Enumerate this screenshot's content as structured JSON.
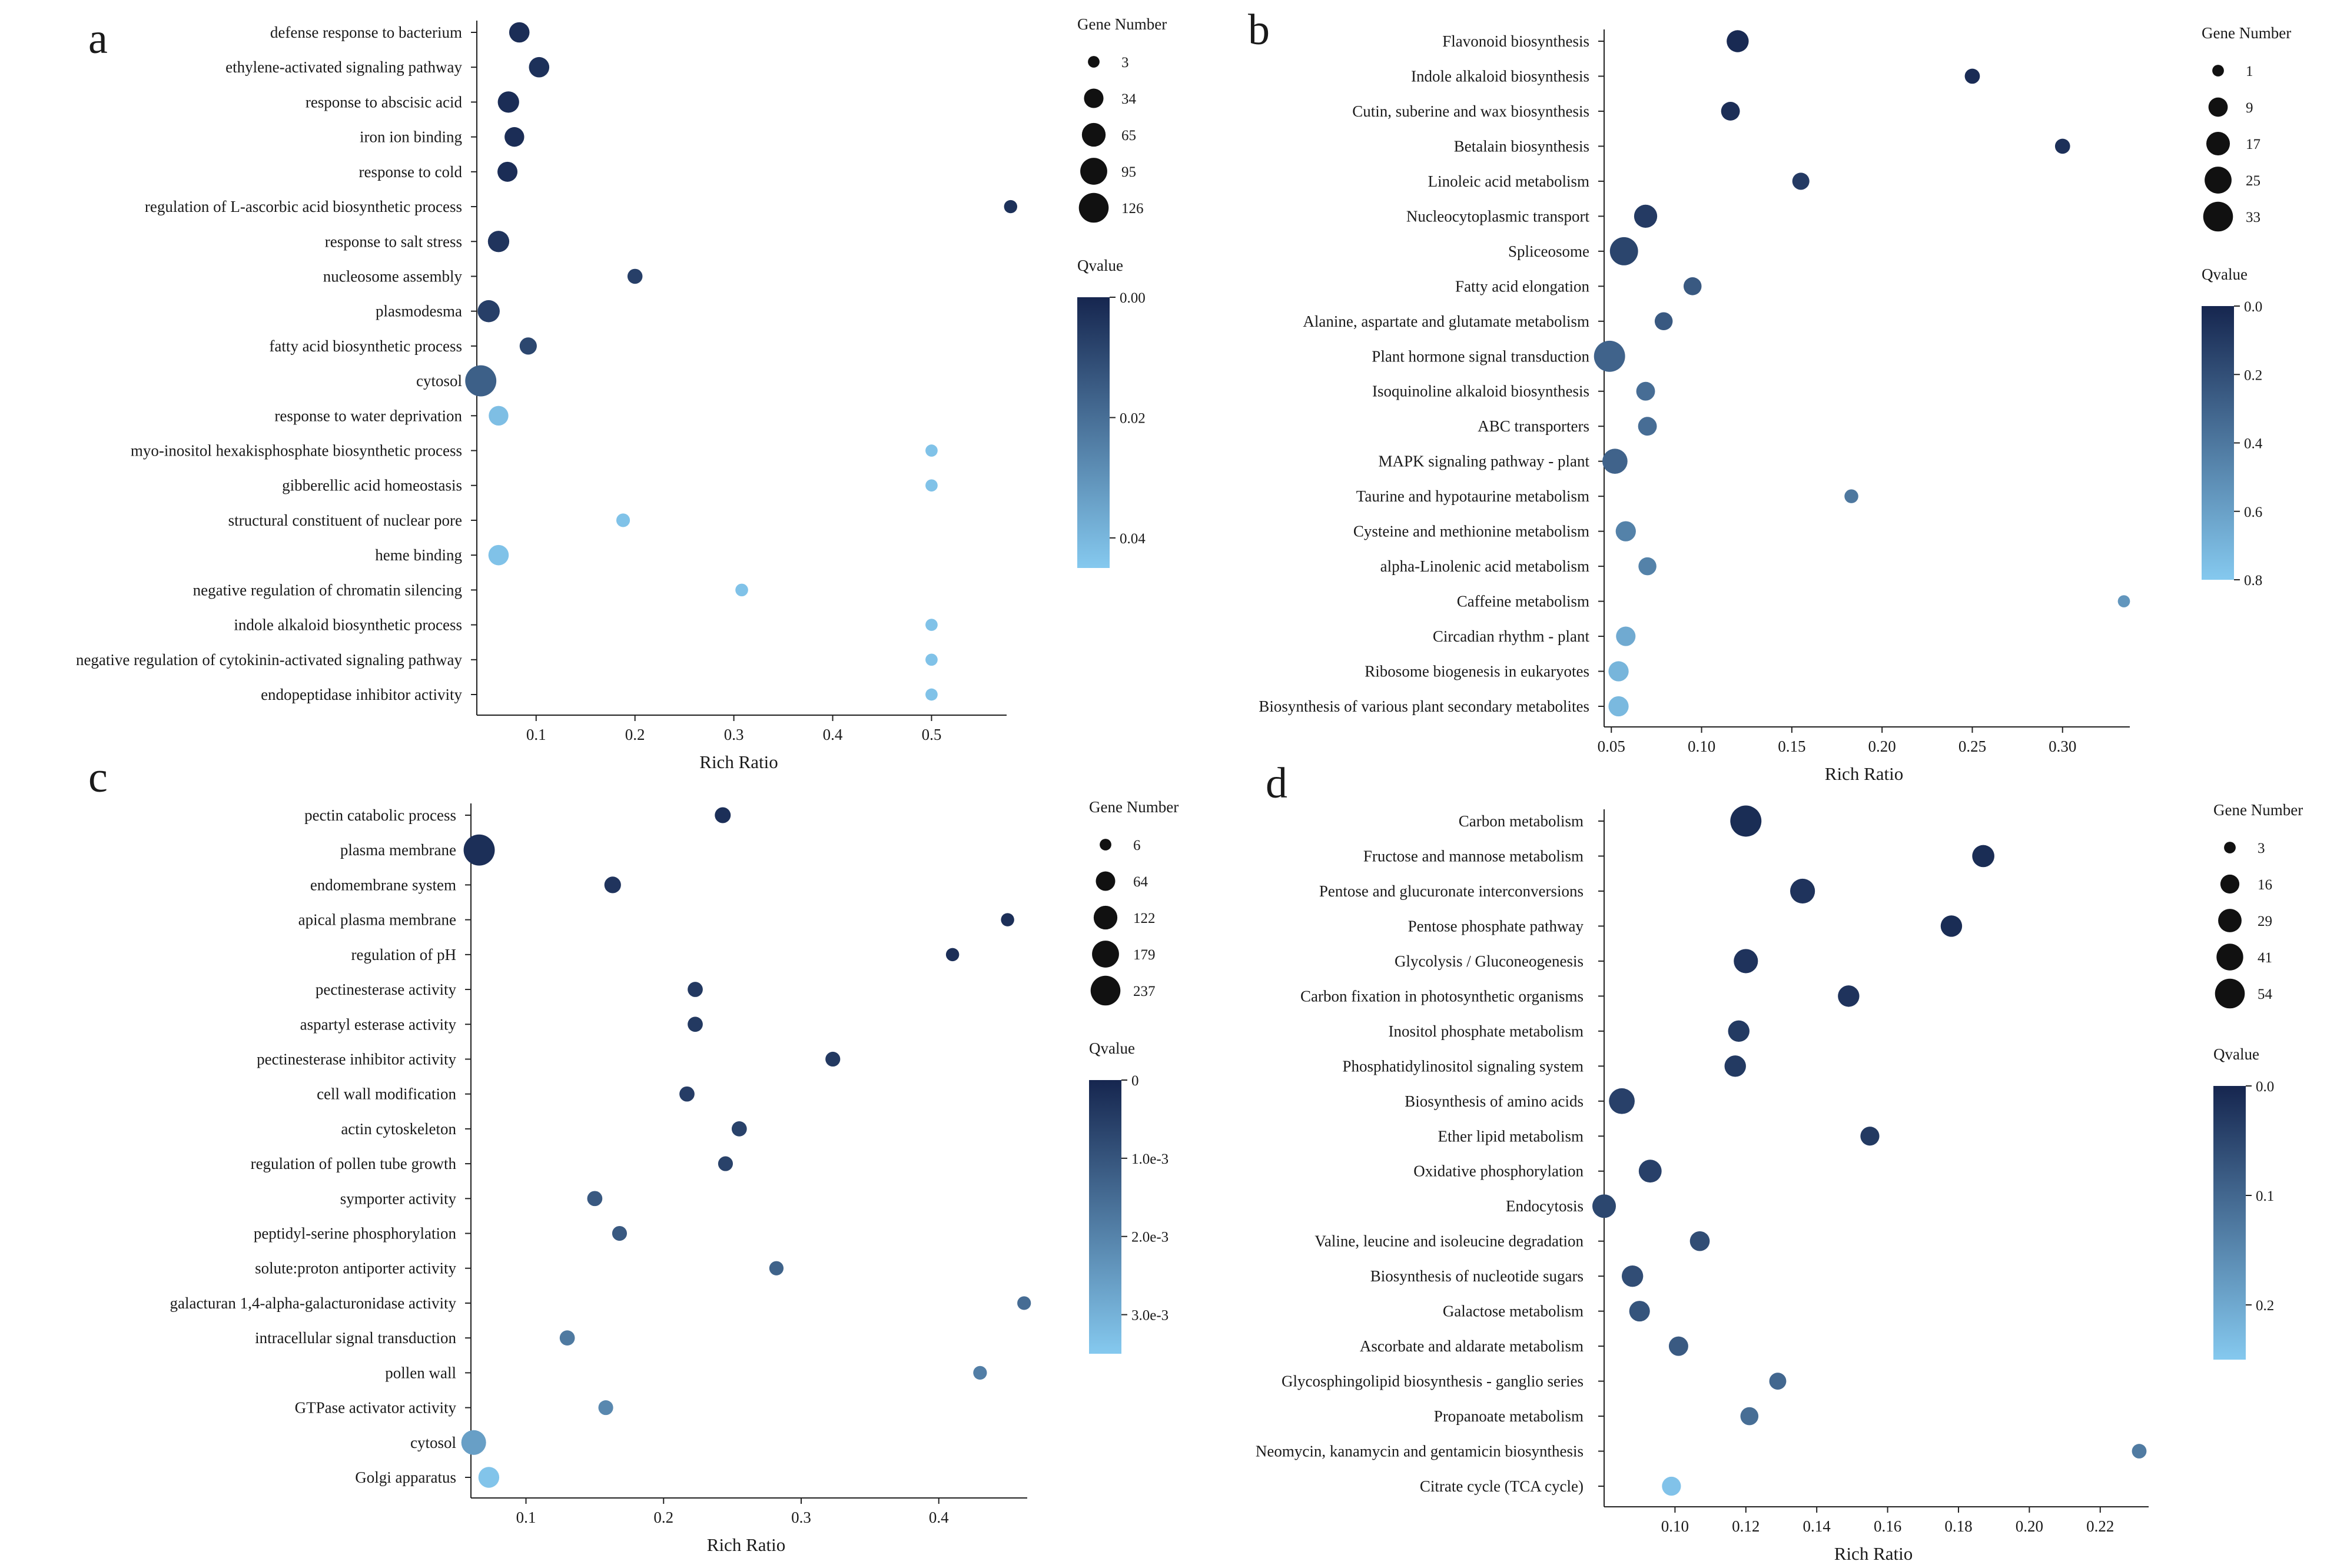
{
  "chart_data": [
    {
      "panel": "a",
      "type": "scatter",
      "xlabel": "Rich Ratio",
      "xticks": [
        "0.1",
        "0.2",
        "0.3",
        "0.4",
        "0.5"
      ],
      "size_legend_title": "Gene Number",
      "size_legend": [
        3,
        34,
        65,
        95,
        126
      ],
      "color_legend_title": "Qvalue",
      "color_ticks": [
        "0.00",
        "0.02",
        "0.04"
      ],
      "colors": {
        "low": "#16264f",
        "high": "#85c9ef"
      },
      "points": [
        {
          "term": "defense response to bacterium",
          "x": 0.083,
          "genes": 34,
          "q": 0.002
        },
        {
          "term": "ethylene-activated signaling pathway",
          "x": 0.103,
          "genes": 34,
          "q": 0.003
        },
        {
          "term": "response to abscisic acid",
          "x": 0.072,
          "genes": 40,
          "q": 0.002
        },
        {
          "term": "iron ion binding",
          "x": 0.078,
          "genes": 30,
          "q": 0.002
        },
        {
          "term": "response to cold",
          "x": 0.071,
          "genes": 32,
          "q": 0.002
        },
        {
          "term": "regulation of L-ascorbic acid biosynthetic process",
          "x": 0.58,
          "genes": 5,
          "q": 0.003
        },
        {
          "term": "response to salt stress",
          "x": 0.062,
          "genes": 40,
          "q": 0.004
        },
        {
          "term": "nucleosome assembly",
          "x": 0.2,
          "genes": 10,
          "q": 0.007
        },
        {
          "term": "plasmodesma",
          "x": 0.052,
          "genes": 45,
          "q": 0.007
        },
        {
          "term": "fatty acid biosynthetic process",
          "x": 0.092,
          "genes": 18,
          "q": 0.009
        },
        {
          "term": "cytosol",
          "x": 0.044,
          "genes": 126,
          "q": 0.016
        },
        {
          "term": "response to water deprivation",
          "x": 0.062,
          "genes": 30,
          "q": 0.042
        },
        {
          "term": "myo-inositol hexakisphosphate biosynthetic process",
          "x": 0.5,
          "genes": 3,
          "q": 0.043
        },
        {
          "term": "gibberellic acid homeostasis",
          "x": 0.5,
          "genes": 3,
          "q": 0.043
        },
        {
          "term": "structural constituent of nuclear pore",
          "x": 0.188,
          "genes": 6,
          "q": 0.043
        },
        {
          "term": "heme binding",
          "x": 0.062,
          "genes": 34,
          "q": 0.043
        },
        {
          "term": "negative regulation of chromatin silencing",
          "x": 0.308,
          "genes": 4,
          "q": 0.043
        },
        {
          "term": "indole alkaloid biosynthetic process",
          "x": 0.5,
          "genes": 3,
          "q": 0.043
        },
        {
          "term": "negative regulation of cytokinin-activated signaling pathway",
          "x": 0.5,
          "genes": 3,
          "q": 0.043
        },
        {
          "term": "endopeptidase inhibitor activity",
          "x": 0.5,
          "genes": 3,
          "q": 0.043
        }
      ]
    },
    {
      "panel": "b",
      "type": "scatter",
      "xlabel": "Rich Ratio",
      "xticks": [
        "0.05",
        "0.10",
        "0.15",
        "0.20",
        "0.25",
        "0.30"
      ],
      "size_legend_title": "Gene Number",
      "size_legend": [
        1,
        9,
        17,
        25,
        33
      ],
      "color_legend_title": "Qvalue",
      "color_ticks": [
        "0.0",
        "0.2",
        "0.4",
        "0.6",
        "0.8"
      ],
      "colors": {
        "low": "#16264f",
        "high": "#85c9ef"
      },
      "points": [
        {
          "term": "Flavonoid biosynthesis",
          "x": 0.12,
          "genes": 12,
          "q": 0.02
        },
        {
          "term": "Indole alkaloid biosynthesis",
          "x": 0.25,
          "genes": 3,
          "q": 0.03
        },
        {
          "term": "Cutin, suberine and wax biosynthesis",
          "x": 0.116,
          "genes": 7,
          "q": 0.04
        },
        {
          "term": "Betalain biosynthesis",
          "x": 0.3,
          "genes": 3,
          "q": 0.05
        },
        {
          "term": "Linoleic acid metabolism",
          "x": 0.155,
          "genes": 5,
          "q": 0.1
        },
        {
          "term": "Nucleocytoplasmic transport",
          "x": 0.069,
          "genes": 14,
          "q": 0.1
        },
        {
          "term": "Spliceosome",
          "x": 0.057,
          "genes": 25,
          "q": 0.15
        },
        {
          "term": "Fatty acid elongation",
          "x": 0.095,
          "genes": 6,
          "q": 0.25
        },
        {
          "term": "Alanine, aspartate and glutamate metabolism",
          "x": 0.079,
          "genes": 6,
          "q": 0.25
        },
        {
          "term": "Plant hormone signal transduction",
          "x": 0.049,
          "genes": 33,
          "q": 0.3
        },
        {
          "term": "Isoquinoline alkaloid biosynthesis",
          "x": 0.069,
          "genes": 7,
          "q": 0.35
        },
        {
          "term": "ABC transporters",
          "x": 0.07,
          "genes": 7,
          "q": 0.35
        },
        {
          "term": "MAPK signaling pathway - plant",
          "x": 0.052,
          "genes": 18,
          "q": 0.3
        },
        {
          "term": "Taurine and hypotaurine metabolism",
          "x": 0.183,
          "genes": 2,
          "q": 0.4
        },
        {
          "term": "Cysteine and methionine metabolism",
          "x": 0.058,
          "genes": 9,
          "q": 0.45
        },
        {
          "term": "alpha-Linolenic acid metabolism",
          "x": 0.07,
          "genes": 6,
          "q": 0.45
        },
        {
          "term": "Caffeine metabolism",
          "x": 0.334,
          "genes": 1,
          "q": 0.55
        },
        {
          "term": "Circadian rhythm - plant",
          "x": 0.058,
          "genes": 8,
          "q": 0.65
        },
        {
          "term": "Ribosome biogenesis in eukaryotes",
          "x": 0.054,
          "genes": 9,
          "q": 0.7
        },
        {
          "term": "Biosynthesis of various plant secondary metabolites",
          "x": 0.054,
          "genes": 9,
          "q": 0.72
        }
      ]
    },
    {
      "panel": "c",
      "type": "scatter",
      "xlabel": "Rich Ratio",
      "xticks": [
        "0.1",
        "0.2",
        "0.3",
        "0.4"
      ],
      "size_legend_title": "Gene Number",
      "size_legend": [
        6,
        64,
        122,
        179,
        237
      ],
      "color_legend_title": "Qvalue",
      "color_ticks": [
        "0",
        "1.0e-3",
        "2.0e-3",
        "3.0e-3"
      ],
      "colors": {
        "low": "#16264f",
        "high": "#85c9ef"
      },
      "points": [
        {
          "term": "pectin catabolic process",
          "x": 0.243,
          "genes": 25,
          "q": 0.0002
        },
        {
          "term": "plasma membrane",
          "x": 0.066,
          "genes": 237,
          "q": 0.0002
        },
        {
          "term": "endomembrane system",
          "x": 0.163,
          "genes": 30,
          "q": 0.0003
        },
        {
          "term": "apical plasma membrane",
          "x": 0.45,
          "genes": 10,
          "q": 0.0002
        },
        {
          "term": "regulation of pH",
          "x": 0.41,
          "genes": 10,
          "q": 0.0002
        },
        {
          "term": "pectinesterase activity",
          "x": 0.223,
          "genes": 20,
          "q": 0.0004
        },
        {
          "term": "aspartyl esterase activity",
          "x": 0.223,
          "genes": 20,
          "q": 0.0004
        },
        {
          "term": "pectinesterase inhibitor activity",
          "x": 0.323,
          "genes": 18,
          "q": 0.0004
        },
        {
          "term": "cell wall modification",
          "x": 0.217,
          "genes": 20,
          "q": 0.0005
        },
        {
          "term": "actin cytoskeleton",
          "x": 0.255,
          "genes": 20,
          "q": 0.0006
        },
        {
          "term": "regulation of pollen tube growth",
          "x": 0.245,
          "genes": 18,
          "q": 0.0006
        },
        {
          "term": "symporter activity",
          "x": 0.15,
          "genes": 20,
          "q": 0.0011
        },
        {
          "term": "peptidyl-serine phosphorylation",
          "x": 0.168,
          "genes": 18,
          "q": 0.0011
        },
        {
          "term": "solute:proton antiporter activity",
          "x": 0.282,
          "genes": 15,
          "q": 0.0013
        },
        {
          "term": "galacturan 1,4-alpha-galacturonidase activity",
          "x": 0.462,
          "genes": 12,
          "q": 0.0015
        },
        {
          "term": "intracellular signal transduction",
          "x": 0.13,
          "genes": 20,
          "q": 0.0018
        },
        {
          "term": "pollen wall",
          "x": 0.43,
          "genes": 12,
          "q": 0.0019
        },
        {
          "term": "GTPase activator activity",
          "x": 0.158,
          "genes": 18,
          "q": 0.0021
        },
        {
          "term": "cytosol",
          "x": 0.062,
          "genes": 122,
          "q": 0.0026
        },
        {
          "term": "Golgi apparatus",
          "x": 0.073,
          "genes": 70,
          "q": 0.0034
        }
      ]
    },
    {
      "panel": "d",
      "type": "scatter",
      "xlabel": "Rich Ratio",
      "xticks": [
        "0.10",
        "0.12",
        "0.14",
        "0.16",
        "0.18",
        "0.20",
        "0.22"
      ],
      "size_legend_title": "Gene Number",
      "size_legend": [
        3,
        16,
        29,
        41,
        54
      ],
      "color_legend_title": "Qvalue",
      "color_ticks": [
        "0.0",
        "0.1",
        "0.2"
      ],
      "colors": {
        "low": "#16264f",
        "high": "#85c9ef"
      },
      "points": [
        {
          "term": "Carbon metabolism",
          "x": 0.12,
          "genes": 54,
          "q": 0.01
        },
        {
          "term": "Fructose and mannose metabolism",
          "x": 0.187,
          "genes": 22,
          "q": 0.01
        },
        {
          "term": "Pentose and glucuronate interconversions",
          "x": 0.136,
          "genes": 30,
          "q": 0.02
        },
        {
          "term": "Pentose phosphate pathway",
          "x": 0.178,
          "genes": 20,
          "q": 0.01
        },
        {
          "term": "Glycolysis / Gluconeogenesis",
          "x": 0.12,
          "genes": 28,
          "q": 0.02
        },
        {
          "term": "Carbon fixation in photosynthetic organisms",
          "x": 0.149,
          "genes": 20,
          "q": 0.02
        },
        {
          "term": "Inositol phosphate metabolism",
          "x": 0.118,
          "genes": 20,
          "q": 0.03
        },
        {
          "term": "Phosphatidylinositol signaling system",
          "x": 0.117,
          "genes": 20,
          "q": 0.03
        },
        {
          "term": "Biosynthesis of amino acids",
          "x": 0.085,
          "genes": 33,
          "q": 0.04
        },
        {
          "term": "Ether lipid metabolism",
          "x": 0.155,
          "genes": 14,
          "q": 0.03
        },
        {
          "term": "Oxidative phosphorylation",
          "x": 0.093,
          "genes": 24,
          "q": 0.04
        },
        {
          "term": "Endocytosis",
          "x": 0.08,
          "genes": 26,
          "q": 0.05
        },
        {
          "term": "Valine, leucine and isoleucine degradation",
          "x": 0.107,
          "genes": 16,
          "q": 0.06
        },
        {
          "term": "Biosynthesis of nucleotide sugars",
          "x": 0.088,
          "genes": 20,
          "q": 0.06
        },
        {
          "term": "Galactose metabolism",
          "x": 0.09,
          "genes": 18,
          "q": 0.07
        },
        {
          "term": "Ascorbate and aldarate metabolism",
          "x": 0.101,
          "genes": 15,
          "q": 0.08
        },
        {
          "term": "Glycosphingolipid biosynthesis - ganglio series",
          "x": 0.129,
          "genes": 10,
          "q": 0.1
        },
        {
          "term": "Propanoate metabolism",
          "x": 0.121,
          "genes": 12,
          "q": 0.11
        },
        {
          "term": "Neomycin, kanamycin and gentamicin biosynthesis",
          "x": 0.231,
          "genes": 6,
          "q": 0.13
        },
        {
          "term": "Citrate cycle (TCA cycle)",
          "x": 0.099,
          "genes": 14,
          "q": 0.24
        }
      ]
    }
  ]
}
